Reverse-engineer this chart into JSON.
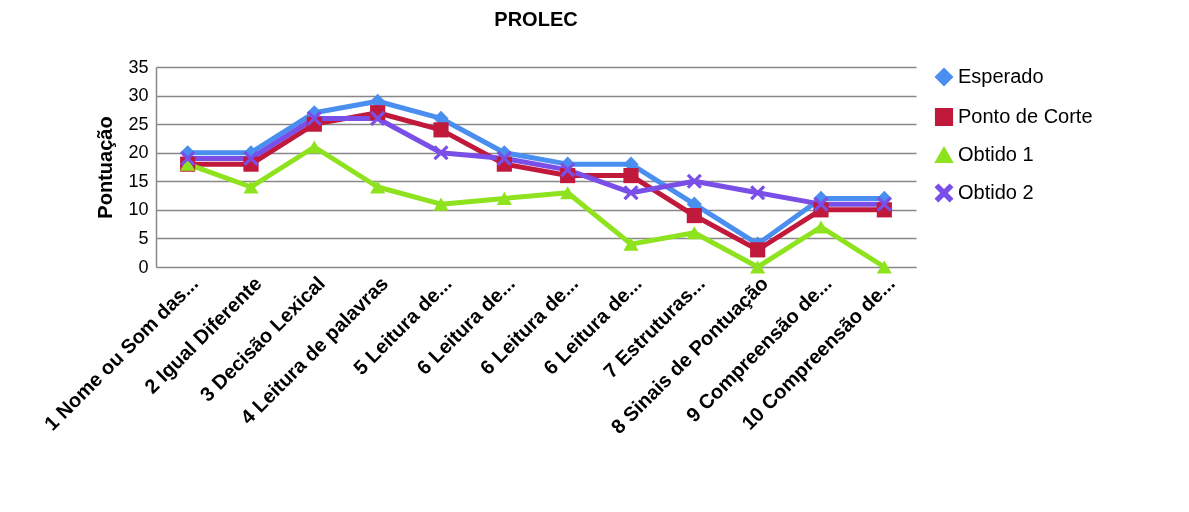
{
  "chart_data": {
    "type": "line",
    "title": "PROLEC",
    "ylabel": "Pontuação",
    "categories": [
      "1 Nome ou Som das...",
      "2 Igual Diferente",
      "3 Decisão Lexical",
      "4 Leitura de palavras",
      "5 Leitura de...",
      "6 Leitura de...",
      "6 Leitura de...",
      "6 Leitura de...",
      "7 Estruturas...",
      "8 Sinais de Pontuação",
      "9 Compreensão de...",
      "10 Compreensão de..."
    ],
    "series": [
      {
        "name": "Esperado",
        "color": "#4a8fef",
        "marker": "diamond",
        "values": [
          20,
          20,
          27,
          29,
          26,
          20,
          18,
          18,
          11,
          4,
          12,
          12
        ]
      },
      {
        "name": "Ponto de Corte",
        "color": "#c0193c",
        "marker": "square",
        "values": [
          18,
          18,
          25,
          27,
          24,
          18,
          16,
          16,
          9,
          3,
          10,
          10
        ]
      },
      {
        "name": "Obtido 1",
        "color": "#8ee21e",
        "marker": "triangle",
        "values": [
          18,
          14,
          21,
          14,
          11,
          12,
          13,
          4,
          6,
          0,
          7,
          0
        ]
      },
      {
        "name": "Obtido 2",
        "color": "#7a4fe8",
        "marker": "cross",
        "values": [
          19,
          19,
          26,
          26,
          20,
          19,
          17,
          13,
          15,
          13,
          11,
          11
        ]
      }
    ],
    "ylim": [
      0,
      35
    ],
    "yticks": [
      0,
      5,
      10,
      15,
      20,
      25,
      30,
      35
    ],
    "grid": "y",
    "legend": "right",
    "line_style": "solid"
  }
}
